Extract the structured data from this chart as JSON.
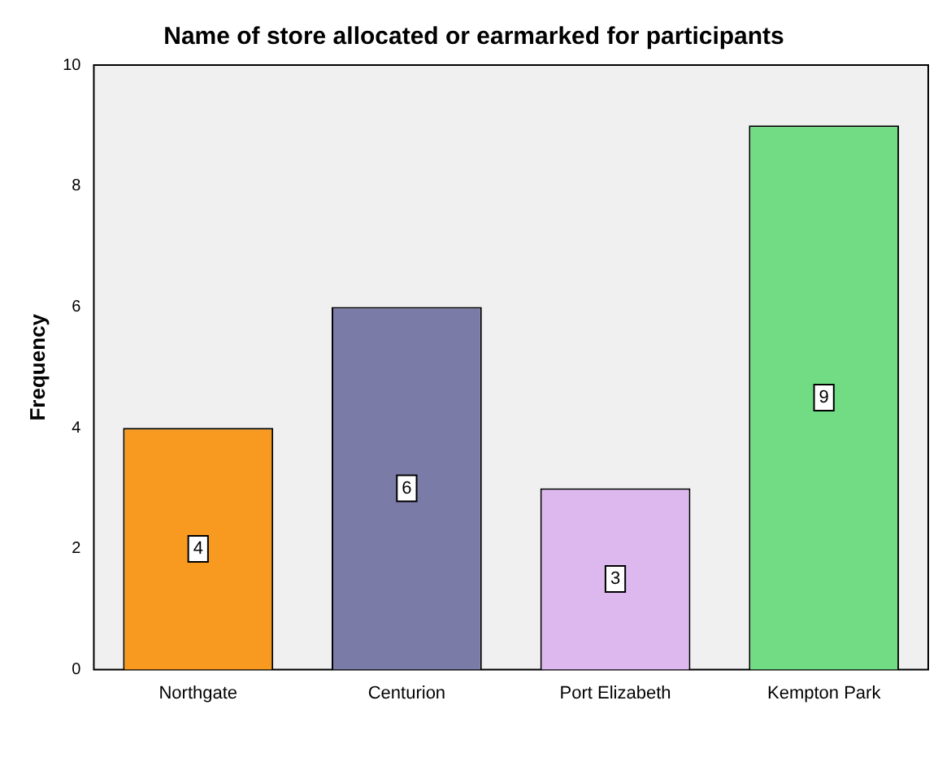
{
  "chart_data": {
    "type": "bar",
    "title": "Name of store allocated or earmarked for participants",
    "ylabel": "Frequency",
    "categories": [
      "Northgate",
      "Centurion",
      "Port Elizabeth",
      "Kempton Park"
    ],
    "values": [
      4,
      6,
      3,
      9
    ],
    "colors": [
      "#f79a1f",
      "#7b7ba8",
      "#dcb8ee",
      "#72dc84"
    ],
    "ylim": [
      0,
      10
    ],
    "yticks": [
      0,
      2,
      4,
      6,
      8,
      10
    ],
    "grid": false,
    "legend": false,
    "data_labels": true
  }
}
